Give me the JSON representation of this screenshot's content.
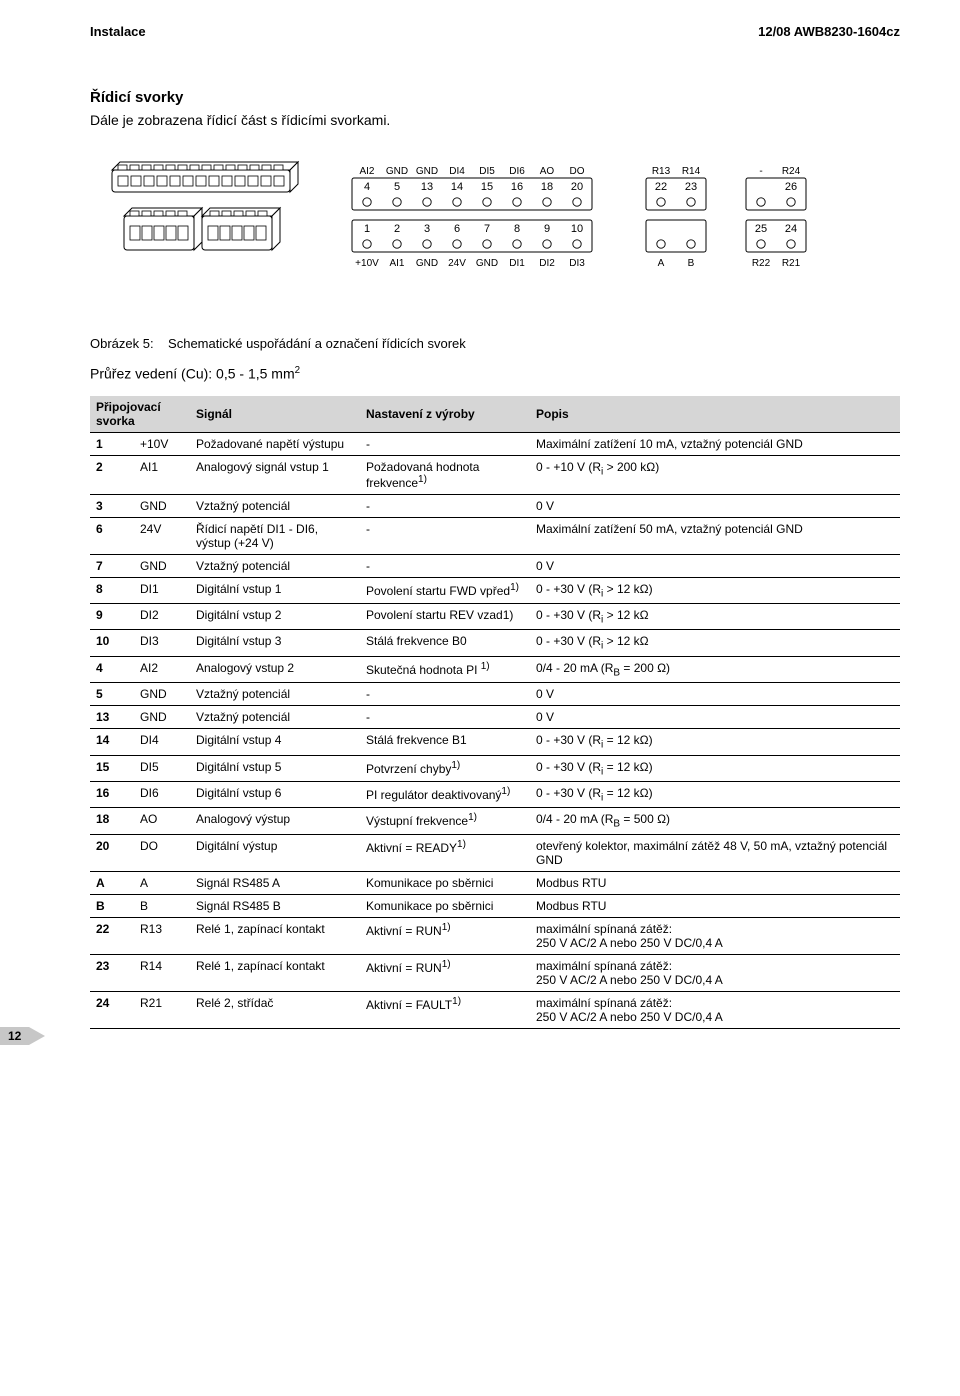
{
  "header": {
    "left": "Instalace",
    "right": "12/08 AWB8230-1604cz"
  },
  "section": {
    "title": "Řídicí svorky",
    "subtitle": "Dále je zobrazena řídicí část s řídicími svorkami."
  },
  "terminals": {
    "block_a": {
      "top_labels": [
        "AI2",
        "GND",
        "GND",
        "DI4",
        "DI5",
        "DI6",
        "AO",
        "DO"
      ],
      "top_numbers": [
        "4",
        "5",
        "13",
        "14",
        "15",
        "16",
        "18",
        "20"
      ],
      "bot_numbers": [
        "1",
        "2",
        "3",
        "6",
        "7",
        "8",
        "9",
        "10"
      ],
      "bot_labels": [
        "+10V",
        "AI1",
        "GND",
        "24V",
        "GND",
        "DI1",
        "DI2",
        "DI3"
      ]
    },
    "block_b": {
      "top_labels": [
        "R13",
        "R14"
      ],
      "top_numbers": [
        "22",
        "23"
      ],
      "bot_labels": [
        "A",
        "B"
      ]
    },
    "block_c": {
      "top_labels": [
        "-",
        "R24"
      ],
      "top_numbers": [
        "",
        "26"
      ],
      "bot_numbers": [
        "25",
        "24"
      ],
      "bot_labels": [
        "R22",
        "R21"
      ]
    },
    "colors": {
      "stroke": "#000000",
      "fill": "#ffffff",
      "label_color": "#000000",
      "font_size_small": 11,
      "font_size_tiny": 10
    }
  },
  "figure": {
    "caption_prefix": "Obrázek 5:",
    "caption_text": "Schematické uspořádání a označení řídicích svorek"
  },
  "cable": {
    "prefix": "Průřez vedení (Cu): 0,5 - 1,5 mm",
    "sup": "2"
  },
  "table": {
    "headers": [
      "Připojovací svorka",
      "",
      "Signál",
      "Nastavení z výroby",
      "Popis"
    ],
    "rows": [
      {
        "th": "1",
        "code": "+10V",
        "sig": "Požadované napětí výstupu",
        "set": "-",
        "desc": "Maximální zatížení 10 mA, vztažný potenciál GND"
      },
      {
        "th": "2",
        "code": "AI1",
        "sig": "Analogový signál vstup 1",
        "set": "Požadovaná hodnota frekvence<sup>1)</sup>",
        "desc": "0 - +10 V (R<sub>i</sub> > 200 kΩ)"
      },
      {
        "th": "3",
        "code": "GND",
        "sig": "Vztažný potenciál",
        "set": "-",
        "desc": "0 V"
      },
      {
        "th": "6",
        "code": "24V",
        "sig": "Řídicí napětí DI1 - DI6, výstup (+24 V)",
        "set": "-",
        "desc": "Maximální zatížení 50 mA, vztažný potenciál GND"
      },
      {
        "th": "7",
        "code": "GND",
        "sig": "Vztažný potenciál",
        "set": "-",
        "desc": "0 V"
      },
      {
        "th": "8",
        "code": "DI1",
        "sig": "Digitální vstup 1",
        "set": "Povolení startu FWD vpřed<sup>1)</sup>",
        "desc": "0 - +30 V (R<sub>i</sub> > 12 kΩ)"
      },
      {
        "th": "9",
        "code": "DI2",
        "sig": "Digitální vstup 2",
        "set": "Povolení startu REV vzad1)",
        "desc": "0 - +30 V (R<sub>i</sub> > 12 kΩ"
      },
      {
        "th": "10",
        "code": "DI3",
        "sig": "Digitální vstup 3",
        "set": "Stálá frekvence B0",
        "desc": "0 - +30 V (R<sub>i</sub> > 12 kΩ"
      },
      {
        "th": "4",
        "code": "AI2",
        "sig": "Analogový vstup 2",
        "set": "Skutečná hodnota PI <sup>1)</sup>",
        "desc": "0/4 - 20 mA (R<sub>B</sub> = 200 Ω)"
      },
      {
        "th": "5",
        "code": "GND",
        "sig": "Vztažný potenciál",
        "set": "-",
        "desc": "0 V"
      },
      {
        "th": "13",
        "code": "GND",
        "sig": "Vztažný potenciál",
        "set": "-",
        "desc": "0 V"
      },
      {
        "th": "14",
        "code": "DI4",
        "sig": "Digitální vstup 4",
        "set": "Stálá frekvence B1",
        "desc": "0 - +30 V (R<sub>i</sub> = 12 kΩ)"
      },
      {
        "th": "15",
        "code": "DI5",
        "sig": "Digitální vstup 5",
        "set": "Potvrzení chyby<sup>1)</sup>",
        "desc": "0 - +30 V (R<sub>i</sub> = 12 kΩ)"
      },
      {
        "th": "16",
        "code": "DI6",
        "sig": "Digitální vstup 6",
        "set": "PI regulátor deaktivovaný<sup>1)</sup>",
        "desc": "0 - +30 V (R<sub>i</sub> = 12 kΩ)"
      },
      {
        "th": "18",
        "code": "AO",
        "sig": "Analogový výstup",
        "set": "Výstupní frekvence<sup>1)</sup>",
        "desc": "0/4 - 20 mA (R<sub>B</sub> = 500 Ω)"
      },
      {
        "th": "20",
        "code": "DO",
        "sig": "Digitální výstup",
        "set": "Aktivní = READY<sup>1)</sup>",
        "desc": "otevřený kolektor, maximální zátěž 48 V, 50 mA, vztažný potenciál GND"
      },
      {
        "th": "A",
        "code": "A",
        "sig": "Signál RS485 A",
        "set": "Komunikace po sběrnici",
        "desc": "Modbus RTU"
      },
      {
        "th": "B",
        "code": "B",
        "sig": "Signál RS485 B",
        "set": "Komunikace po sběrnici",
        "desc": "Modbus RTU"
      },
      {
        "th": "22",
        "code": "R13",
        "sig": "Relé 1, zapínací kontakt",
        "set": "Aktivní = RUN<sup>1)</sup>",
        "desc": "maximální spínaná zátěž:<br>250 V AC/2 A nebo 250 V DC/0,4 A"
      },
      {
        "th": "23",
        "code": "R14",
        "sig": "Relé 1, zapínací kontakt",
        "set": "Aktivní = RUN<sup>1)</sup>",
        "desc": "maximální spínaná zátěž:<br>250 V AC/2 A nebo 250 V DC/0,4 A"
      },
      {
        "th": "24",
        "code": "R21",
        "sig": "Relé 2, střídač",
        "set": "Aktivní = FAULT<sup>1)</sup>",
        "desc": "maximální spínaná zátěž:<br>250 V AC/2 A nebo 250 V DC/0,4 A"
      }
    ]
  },
  "page_number": "12"
}
